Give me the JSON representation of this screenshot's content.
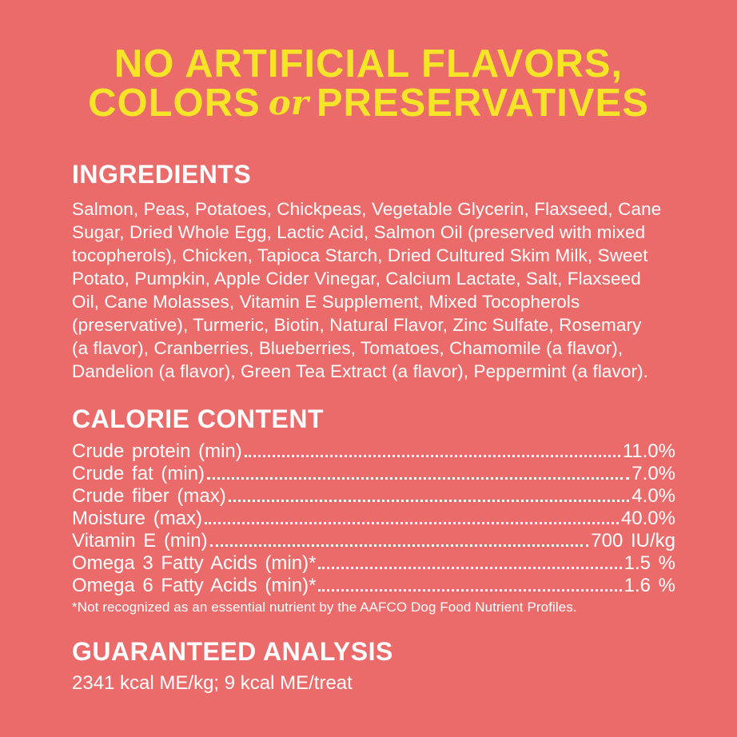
{
  "colors": {
    "background": "#EB6B6B",
    "headline_yellow": "#F6E428",
    "text_white": "#FFFFFF"
  },
  "headline": {
    "line1": "NO ARTIFICIAL FLAVORS,",
    "line2_colors": "COLORS",
    "line2_or": "or",
    "line2_preservatives": "PRESERVATIVES"
  },
  "ingredients": {
    "heading": "INGREDIENTS",
    "lines": [
      "Salmon, Peas, Potatoes, Chickpeas, Vegetable Glycerin, Flaxseed, Cane",
      "Sugar, Dried Whole Egg, Lactic Acid, Salmon Oil (preserved with mixed",
      "tocopherols), Chicken, Tapioca Starch, Dried Cultured Skim Milk, Sweet",
      "Potato, Pumpkin, Apple Cider Vinegar, Calcium Lactate, Salt, Flaxseed",
      "Oil, Cane Molasses, Vitamin E Supplement, Mixed Tocopherols",
      "(preservative), Turmeric, Biotin, Natural Flavor, Zinc Sulfate, Rosemary",
      "(a flavor), Cranberries, Blueberries, Tomatoes, Chamomile (a flavor),",
      "Dandelion (a flavor), Green Tea Extract (a flavor), Peppermint (a flavor)."
    ]
  },
  "calorie_content": {
    "heading": "CALORIE CONTENT",
    "rows": [
      {
        "label": "Crude protein (min)",
        "value": "11.0%"
      },
      {
        "label": "Crude fat (min)",
        "value": "7.0%"
      },
      {
        "label": "Crude fiber (max)",
        "value": "4.0%"
      },
      {
        "label": "Moisture (max)",
        "value": "40.0%"
      },
      {
        "label": "Vitamin E (min)",
        "value": "700 IU/kg"
      },
      {
        "label": "Omega 3 Fatty Acids (min)*",
        "value": "1.5 %"
      },
      {
        "label": "Omega 6 Fatty Acids (min)*",
        "value": "1.6 %"
      }
    ],
    "footnote": "*Not recognized as an essential nutrient by the AAFCO Dog Food Nutrient Profiles."
  },
  "guaranteed_analysis": {
    "heading": "GUARANTEED ANALYSIS",
    "detail": "2341 kcal ME/kg; 9 kcal ME/treat"
  }
}
